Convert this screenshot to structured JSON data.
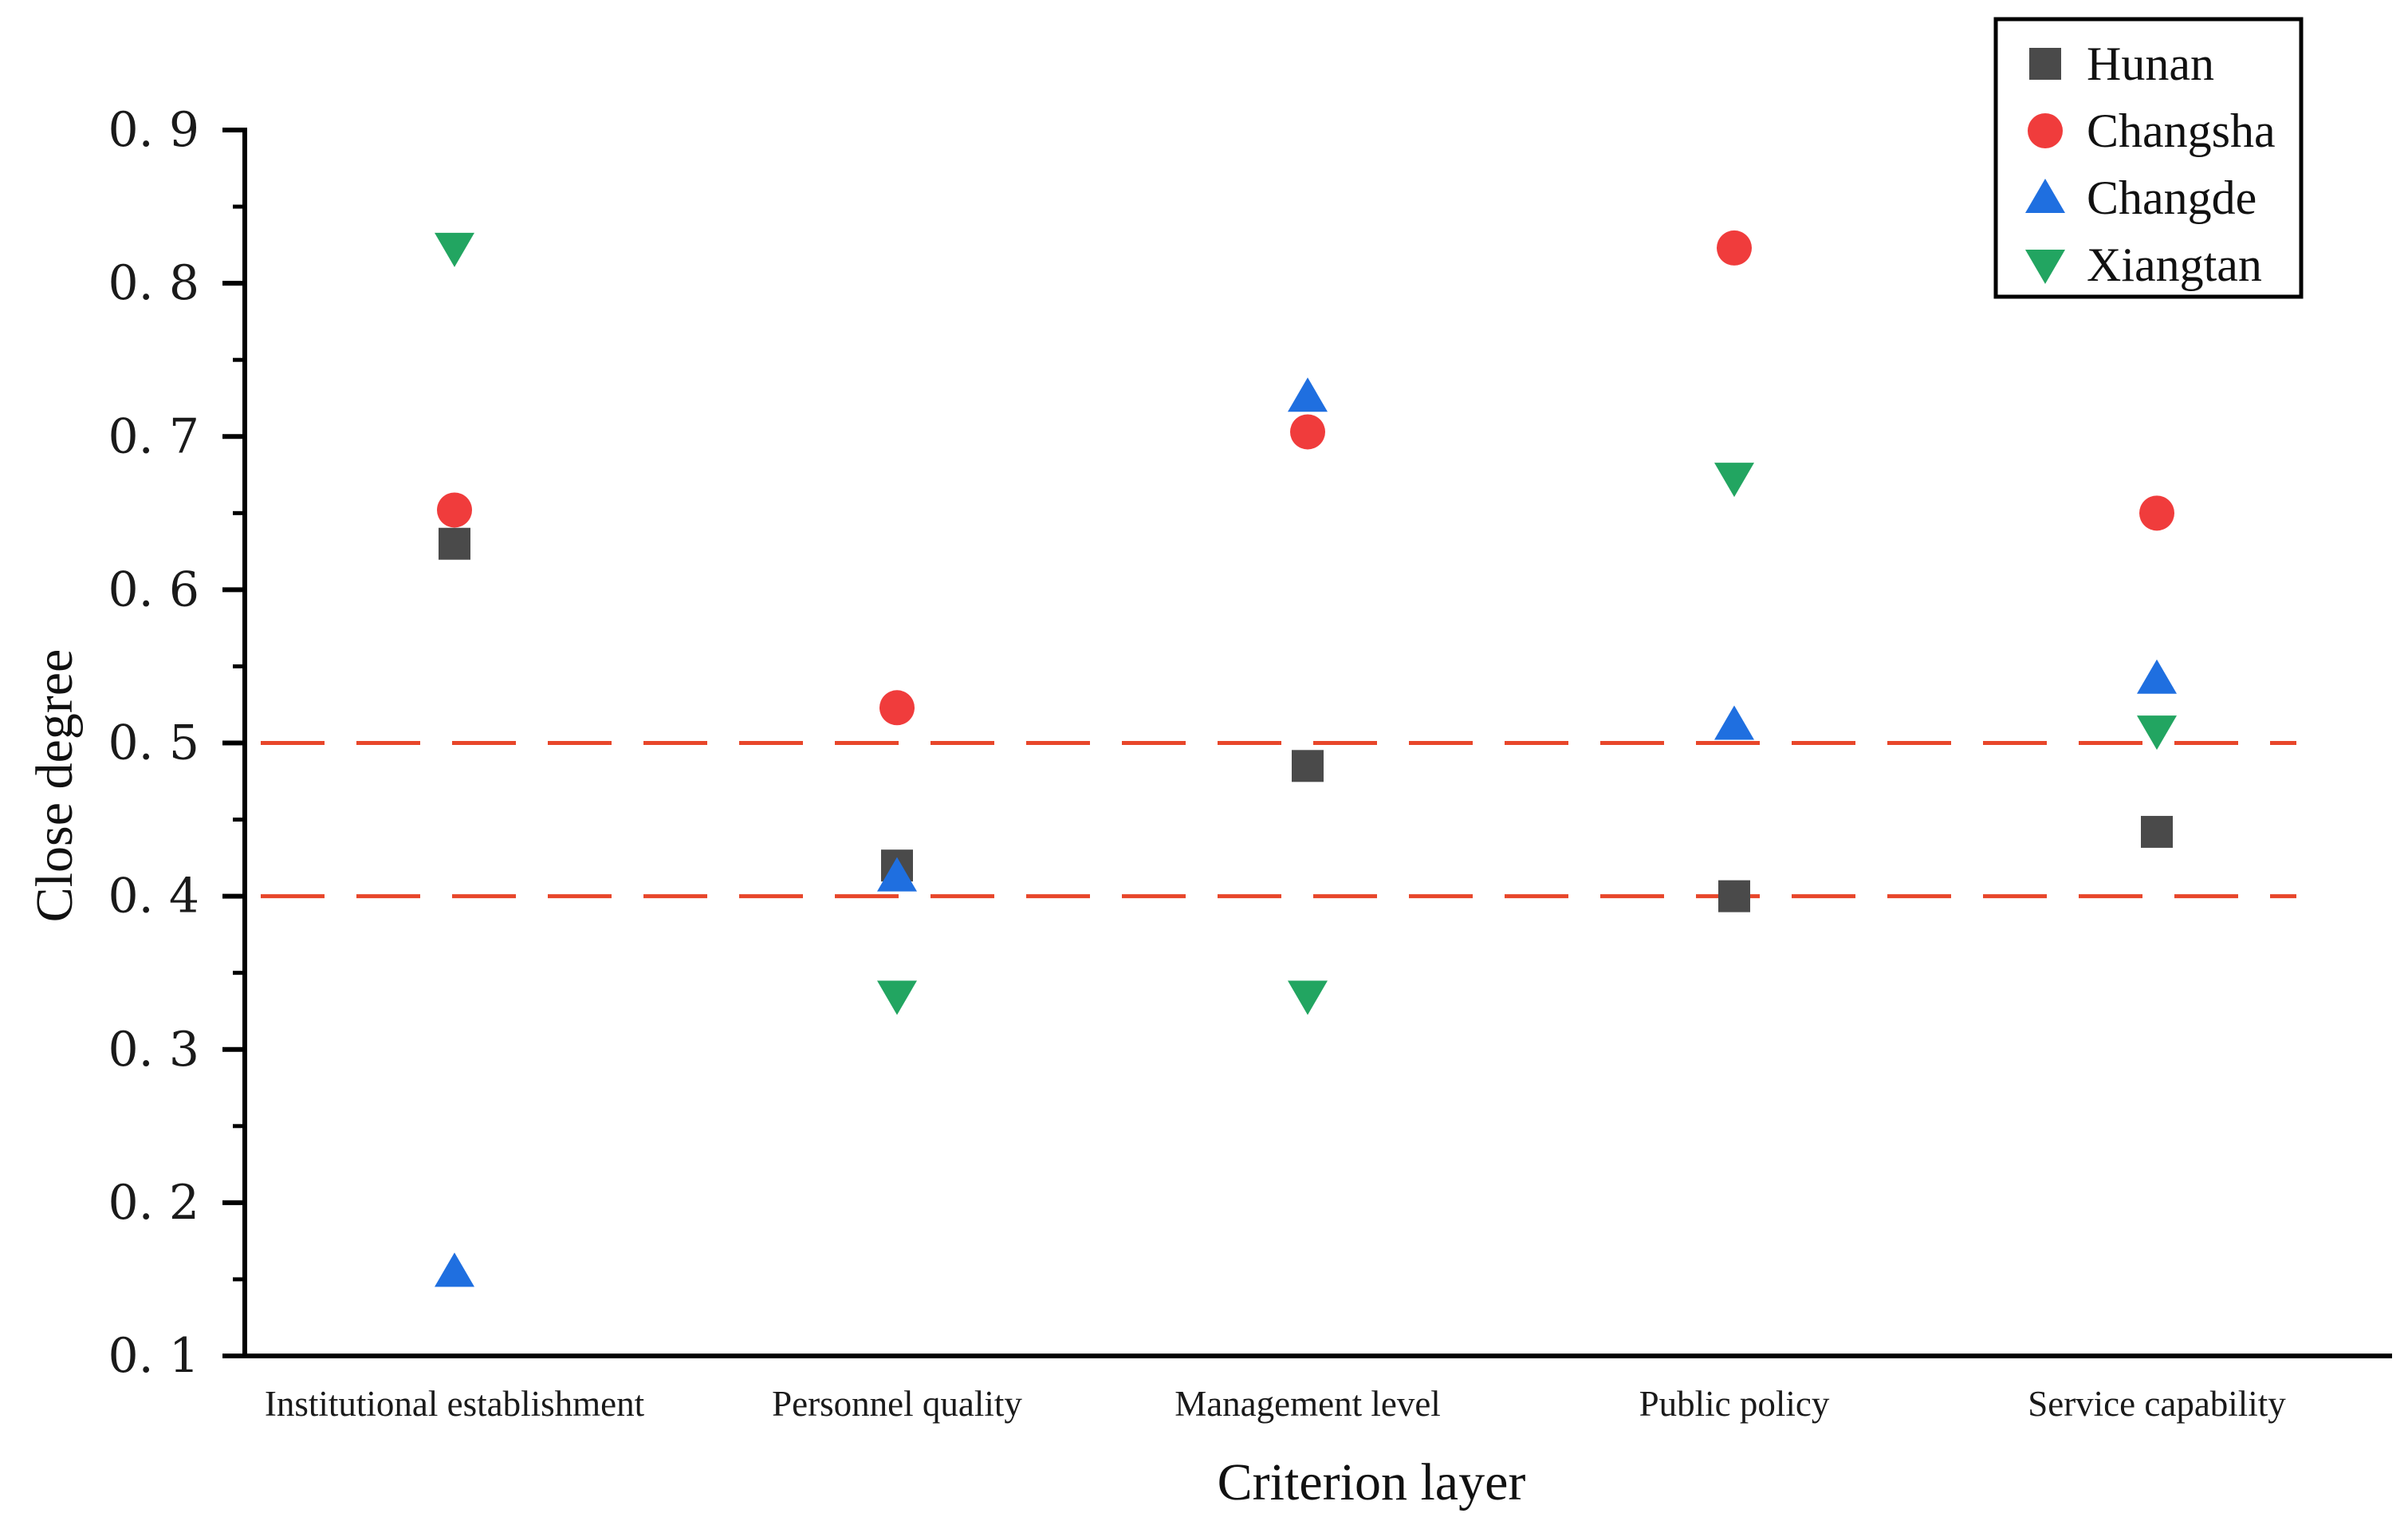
{
  "chart_data": {
    "type": "scatter",
    "title": "",
    "xlabel": "Criterion layer",
    "ylabel": "Close degree",
    "ylim": [
      0.1,
      0.9
    ],
    "yticks": [
      "0. 1",
      "0. 2",
      "0. 3",
      "0. 4",
      "0. 5",
      "0. 6",
      "0. 7",
      "0. 8",
      "0. 9"
    ],
    "grid": false,
    "legend_position": "top-right",
    "categories": [
      "Institutional establishment",
      "Personnel quality",
      "Management level",
      "Public policy",
      "Service capability"
    ],
    "reference_lines": [
      {
        "y": 0.5,
        "color": "#e8462a",
        "style": "dashed"
      },
      {
        "y": 0.4,
        "color": "#e8462a",
        "style": "dashed"
      }
    ],
    "series": [
      {
        "name": "Hunan",
        "marker": "square",
        "color": "#4a4a4a",
        "values": [
          0.63,
          0.42,
          0.485,
          0.4,
          0.442
        ]
      },
      {
        "name": "Changsha",
        "marker": "circle",
        "color": "#f03c3c",
        "values": [
          0.652,
          0.523,
          0.703,
          0.823,
          0.65
        ]
      },
      {
        "name": "Changde",
        "marker": "triangle-up",
        "color": "#1f6fe0",
        "values": [
          0.155,
          0.413,
          0.726,
          0.512,
          0.542
        ]
      },
      {
        "name": "Xiangtan",
        "marker": "triangle-down",
        "color": "#22a561",
        "values": [
          0.823,
          0.335,
          0.335,
          0.673,
          0.508
        ]
      }
    ]
  }
}
